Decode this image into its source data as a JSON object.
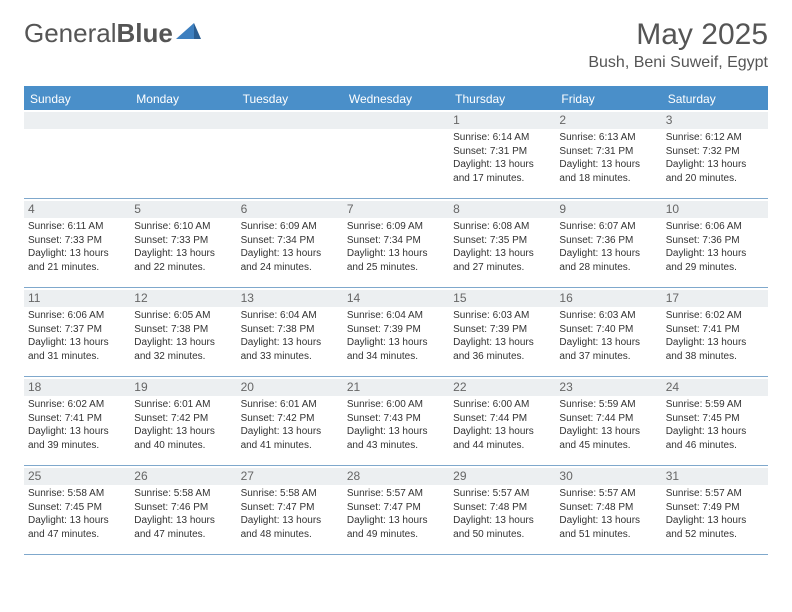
{
  "brand": {
    "part1": "General",
    "part2": "Blue"
  },
  "title": "May 2025",
  "location": "Bush, Beni Suweif, Egypt",
  "colors": {
    "header_bg": "#4a8fc9",
    "header_text": "#ffffff",
    "band_bg": "#eceff1",
    "rule": "#7fa8cc",
    "title_color": "#555555",
    "body_text": "#333333"
  },
  "day_names": [
    "Sunday",
    "Monday",
    "Tuesday",
    "Wednesday",
    "Thursday",
    "Friday",
    "Saturday"
  ],
  "weeks": [
    [
      null,
      null,
      null,
      null,
      {
        "n": "1",
        "sr": "6:14 AM",
        "ss": "7:31 PM",
        "dl": "13 hours and 17 minutes."
      },
      {
        "n": "2",
        "sr": "6:13 AM",
        "ss": "7:31 PM",
        "dl": "13 hours and 18 minutes."
      },
      {
        "n": "3",
        "sr": "6:12 AM",
        "ss": "7:32 PM",
        "dl": "13 hours and 20 minutes."
      }
    ],
    [
      {
        "n": "4",
        "sr": "6:11 AM",
        "ss": "7:33 PM",
        "dl": "13 hours and 21 minutes."
      },
      {
        "n": "5",
        "sr": "6:10 AM",
        "ss": "7:33 PM",
        "dl": "13 hours and 22 minutes."
      },
      {
        "n": "6",
        "sr": "6:09 AM",
        "ss": "7:34 PM",
        "dl": "13 hours and 24 minutes."
      },
      {
        "n": "7",
        "sr": "6:09 AM",
        "ss": "7:34 PM",
        "dl": "13 hours and 25 minutes."
      },
      {
        "n": "8",
        "sr": "6:08 AM",
        "ss": "7:35 PM",
        "dl": "13 hours and 27 minutes."
      },
      {
        "n": "9",
        "sr": "6:07 AM",
        "ss": "7:36 PM",
        "dl": "13 hours and 28 minutes."
      },
      {
        "n": "10",
        "sr": "6:06 AM",
        "ss": "7:36 PM",
        "dl": "13 hours and 29 minutes."
      }
    ],
    [
      {
        "n": "11",
        "sr": "6:06 AM",
        "ss": "7:37 PM",
        "dl": "13 hours and 31 minutes."
      },
      {
        "n": "12",
        "sr": "6:05 AM",
        "ss": "7:38 PM",
        "dl": "13 hours and 32 minutes."
      },
      {
        "n": "13",
        "sr": "6:04 AM",
        "ss": "7:38 PM",
        "dl": "13 hours and 33 minutes."
      },
      {
        "n": "14",
        "sr": "6:04 AM",
        "ss": "7:39 PM",
        "dl": "13 hours and 34 minutes."
      },
      {
        "n": "15",
        "sr": "6:03 AM",
        "ss": "7:39 PM",
        "dl": "13 hours and 36 minutes."
      },
      {
        "n": "16",
        "sr": "6:03 AM",
        "ss": "7:40 PM",
        "dl": "13 hours and 37 minutes."
      },
      {
        "n": "17",
        "sr": "6:02 AM",
        "ss": "7:41 PM",
        "dl": "13 hours and 38 minutes."
      }
    ],
    [
      {
        "n": "18",
        "sr": "6:02 AM",
        "ss": "7:41 PM",
        "dl": "13 hours and 39 minutes."
      },
      {
        "n": "19",
        "sr": "6:01 AM",
        "ss": "7:42 PM",
        "dl": "13 hours and 40 minutes."
      },
      {
        "n": "20",
        "sr": "6:01 AM",
        "ss": "7:42 PM",
        "dl": "13 hours and 41 minutes."
      },
      {
        "n": "21",
        "sr": "6:00 AM",
        "ss": "7:43 PM",
        "dl": "13 hours and 43 minutes."
      },
      {
        "n": "22",
        "sr": "6:00 AM",
        "ss": "7:44 PM",
        "dl": "13 hours and 44 minutes."
      },
      {
        "n": "23",
        "sr": "5:59 AM",
        "ss": "7:44 PM",
        "dl": "13 hours and 45 minutes."
      },
      {
        "n": "24",
        "sr": "5:59 AM",
        "ss": "7:45 PM",
        "dl": "13 hours and 46 minutes."
      }
    ],
    [
      {
        "n": "25",
        "sr": "5:58 AM",
        "ss": "7:45 PM",
        "dl": "13 hours and 47 minutes."
      },
      {
        "n": "26",
        "sr": "5:58 AM",
        "ss": "7:46 PM",
        "dl": "13 hours and 47 minutes."
      },
      {
        "n": "27",
        "sr": "5:58 AM",
        "ss": "7:47 PM",
        "dl": "13 hours and 48 minutes."
      },
      {
        "n": "28",
        "sr": "5:57 AM",
        "ss": "7:47 PM",
        "dl": "13 hours and 49 minutes."
      },
      {
        "n": "29",
        "sr": "5:57 AM",
        "ss": "7:48 PM",
        "dl": "13 hours and 50 minutes."
      },
      {
        "n": "30",
        "sr": "5:57 AM",
        "ss": "7:48 PM",
        "dl": "13 hours and 51 minutes."
      },
      {
        "n": "31",
        "sr": "5:57 AM",
        "ss": "7:49 PM",
        "dl": "13 hours and 52 minutes."
      }
    ]
  ],
  "labels": {
    "sunrise": "Sunrise: ",
    "sunset": "Sunset: ",
    "daylight": "Daylight: "
  }
}
